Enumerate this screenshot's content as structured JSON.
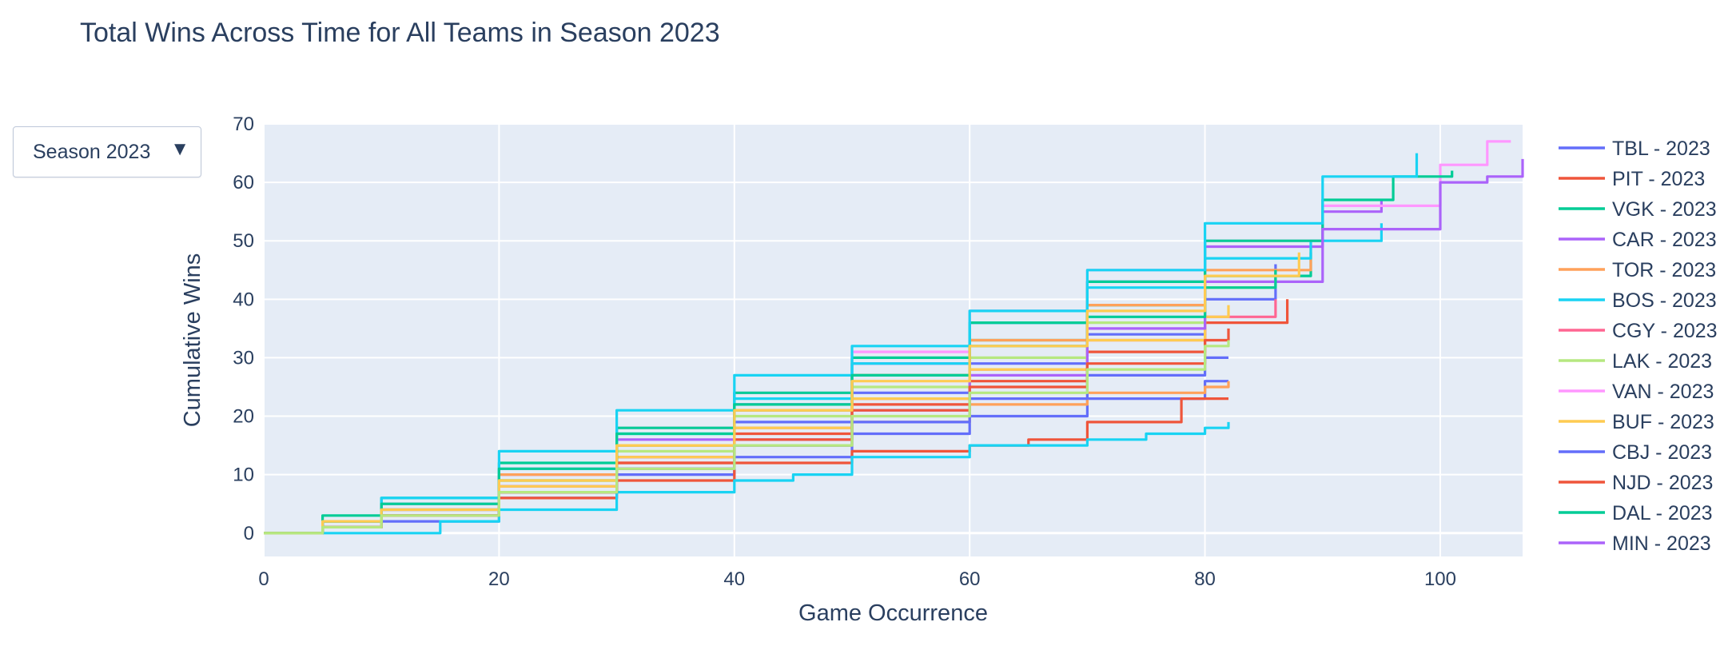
{
  "title": "Total Wins Across Time for All Teams in Season 2023",
  "dropdown": {
    "selected": "Season 2023",
    "arrow_icon": "triangle-down-icon"
  },
  "chart_data": {
    "type": "line",
    "title": "Total Wins Across Time for All Teams in Season 2023",
    "xlabel": "Game Occurrence",
    "ylabel": "Cumulative Wins",
    "xlim": [
      0,
      107
    ],
    "ylim": [
      -4,
      70
    ],
    "xticks": [
      0,
      20,
      40,
      60,
      80,
      100
    ],
    "yticks": [
      0,
      10,
      20,
      30,
      40,
      50,
      60,
      70
    ],
    "grid": true,
    "background": "#e5ecf6",
    "legend_position": "right",
    "series": [
      {
        "name": "TBL - 2023",
        "color": "#636efa",
        "points": [
          [
            0,
            0
          ],
          [
            5,
            2
          ],
          [
            10,
            4
          ],
          [
            20,
            8
          ],
          [
            30,
            13
          ],
          [
            40,
            19
          ],
          [
            50,
            24
          ],
          [
            60,
            29
          ],
          [
            70,
            34
          ],
          [
            80,
            40
          ],
          [
            86,
            46
          ]
        ]
      },
      {
        "name": "PIT - 2023",
        "color": "#ef553b",
        "points": [
          [
            0,
            0
          ],
          [
            5,
            1
          ],
          [
            10,
            3
          ],
          [
            20,
            7
          ],
          [
            30,
            12
          ],
          [
            40,
            17
          ],
          [
            50,
            22
          ],
          [
            60,
            26
          ],
          [
            70,
            31
          ],
          [
            80,
            36
          ],
          [
            87,
            40
          ]
        ]
      },
      {
        "name": "VGK - 2023",
        "color": "#00cc96",
        "points": [
          [
            0,
            0
          ],
          [
            5,
            2
          ],
          [
            10,
            5
          ],
          [
            20,
            9
          ],
          [
            30,
            15
          ],
          [
            40,
            21
          ],
          [
            50,
            27
          ],
          [
            60,
            33
          ],
          [
            70,
            39
          ],
          [
            80,
            44
          ],
          [
            89,
            48
          ]
        ]
      },
      {
        "name": "CAR - 2023",
        "color": "#ab63fa",
        "points": [
          [
            0,
            0
          ],
          [
            5,
            1
          ],
          [
            10,
            4
          ],
          [
            20,
            10
          ],
          [
            30,
            16
          ],
          [
            40,
            22
          ],
          [
            50,
            29
          ],
          [
            60,
            36
          ],
          [
            70,
            43
          ],
          [
            80,
            49
          ],
          [
            90,
            55
          ],
          [
            95,
            57
          ]
        ]
      },
      {
        "name": "TOR - 2023",
        "color": "#ffa15a",
        "points": [
          [
            0,
            0
          ],
          [
            5,
            2
          ],
          [
            10,
            5
          ],
          [
            20,
            10
          ],
          [
            30,
            15
          ],
          [
            40,
            21
          ],
          [
            50,
            27
          ],
          [
            60,
            33
          ],
          [
            70,
            39
          ],
          [
            80,
            45
          ],
          [
            89,
            49
          ]
        ]
      },
      {
        "name": "BOS - 2023",
        "color": "#19d3f3",
        "points": [
          [
            0,
            0
          ],
          [
            5,
            2
          ],
          [
            10,
            5
          ],
          [
            20,
            11
          ],
          [
            30,
            17
          ],
          [
            40,
            23
          ],
          [
            50,
            29
          ],
          [
            60,
            36
          ],
          [
            70,
            42
          ],
          [
            80,
            47
          ],
          [
            89,
            50
          ],
          [
            95,
            53
          ]
        ]
      },
      {
        "name": "CGY - 2023",
        "color": "#ff6692",
        "points": [
          [
            0,
            0
          ],
          [
            5,
            1
          ],
          [
            10,
            3
          ],
          [
            20,
            8
          ],
          [
            30,
            13
          ],
          [
            40,
            18
          ],
          [
            50,
            23
          ],
          [
            60,
            28
          ],
          [
            70,
            33
          ],
          [
            80,
            37
          ],
          [
            86,
            40
          ]
        ]
      },
      {
        "name": "LAK - 2023",
        "color": "#b6e880",
        "points": [
          [
            0,
            0
          ],
          [
            5,
            2
          ],
          [
            10,
            4
          ],
          [
            20,
            9
          ],
          [
            30,
            14
          ],
          [
            40,
            20
          ],
          [
            50,
            25
          ],
          [
            60,
            30
          ],
          [
            70,
            36
          ],
          [
            80,
            42
          ],
          [
            86,
            45
          ]
        ]
      },
      {
        "name": "VAN - 2023",
        "color": "#ff97ff",
        "points": [
          [
            0,
            0
          ],
          [
            5,
            2
          ],
          [
            10,
            5
          ],
          [
            20,
            11
          ],
          [
            30,
            18
          ],
          [
            40,
            24
          ],
          [
            50,
            31
          ],
          [
            60,
            38
          ],
          [
            70,
            45
          ],
          [
            80,
            50
          ],
          [
            90,
            56
          ],
          [
            100,
            63
          ],
          [
            104,
            67
          ],
          [
            106,
            67
          ]
        ]
      },
      {
        "name": "BUF - 2023",
        "color": "#fecb52",
        "points": [
          [
            0,
            0
          ],
          [
            5,
            1
          ],
          [
            10,
            3
          ],
          [
            20,
            8
          ],
          [
            30,
            13
          ],
          [
            40,
            18
          ],
          [
            50,
            23
          ],
          [
            60,
            28
          ],
          [
            70,
            33
          ],
          [
            80,
            37
          ],
          [
            82,
            39
          ]
        ]
      },
      {
        "name": "CBJ - 2023",
        "color": "#636efa",
        "points": [
          [
            0,
            0
          ],
          [
            5,
            1
          ],
          [
            10,
            2
          ],
          [
            20,
            6
          ],
          [
            30,
            10
          ],
          [
            40,
            13
          ],
          [
            50,
            17
          ],
          [
            60,
            20
          ],
          [
            70,
            23
          ],
          [
            80,
            26
          ],
          [
            82,
            26
          ]
        ]
      },
      {
        "name": "NJD - 2023",
        "color": "#ef553b",
        "points": [
          [
            0,
            0
          ],
          [
            5,
            1
          ],
          [
            10,
            3
          ],
          [
            20,
            6
          ],
          [
            30,
            9
          ],
          [
            40,
            12
          ],
          [
            50,
            14
          ],
          [
            60,
            15
          ],
          [
            65,
            16
          ],
          [
            70,
            19
          ],
          [
            78,
            23
          ],
          [
            82,
            23
          ]
        ]
      },
      {
        "name": "DAL - 2023",
        "color": "#00cc96",
        "points": [
          [
            0,
            0
          ],
          [
            5,
            3
          ],
          [
            10,
            6
          ],
          [
            20,
            12
          ],
          [
            30,
            18
          ],
          [
            40,
            24
          ],
          [
            50,
            30
          ],
          [
            60,
            36
          ],
          [
            70,
            43
          ],
          [
            80,
            50
          ],
          [
            90,
            57
          ],
          [
            96,
            61
          ],
          [
            101,
            62
          ]
        ]
      },
      {
        "name": "MIN - 2023",
        "color": "#ab63fa",
        "points": [
          [
            0,
            0
          ],
          [
            5,
            1
          ],
          [
            10,
            3
          ],
          [
            20,
            7
          ],
          [
            30,
            11
          ],
          [
            40,
            16
          ],
          [
            50,
            21
          ],
          [
            60,
            27
          ],
          [
            70,
            35
          ],
          [
            80,
            43
          ],
          [
            90,
            52
          ],
          [
            100,
            60
          ],
          [
            104,
            61
          ],
          [
            107,
            64
          ]
        ]
      },
      {
        "color": "#ffa15a",
        "points": [
          [
            0,
            0
          ],
          [
            5,
            1
          ],
          [
            10,
            3
          ],
          [
            20,
            7
          ],
          [
            30,
            11
          ],
          [
            40,
            15
          ],
          [
            50,
            19
          ],
          [
            60,
            22
          ],
          [
            70,
            24
          ],
          [
            80,
            25
          ],
          [
            82,
            26
          ]
        ]
      },
      {
        "color": "#19d3f3",
        "points": [
          [
            0,
            0
          ],
          [
            5,
            0
          ],
          [
            12,
            0
          ],
          [
            15,
            2
          ],
          [
            20,
            4
          ],
          [
            30,
            7
          ],
          [
            40,
            9
          ],
          [
            45,
            10
          ],
          [
            50,
            13
          ],
          [
            60,
            15
          ],
          [
            70,
            16
          ],
          [
            75,
            17
          ],
          [
            80,
            18
          ],
          [
            82,
            19
          ]
        ]
      },
      {
        "color": "#19d3f3",
        "points": [
          [
            0,
            0
          ],
          [
            5,
            2
          ],
          [
            10,
            6
          ],
          [
            20,
            14
          ],
          [
            30,
            21
          ],
          [
            40,
            27
          ],
          [
            50,
            32
          ],
          [
            60,
            38
          ],
          [
            70,
            45
          ],
          [
            80,
            53
          ],
          [
            90,
            61
          ],
          [
            98,
            65
          ]
        ]
      },
      {
        "color": "#636efa",
        "points": [
          [
            0,
            0
          ],
          [
            5,
            1
          ],
          [
            10,
            3
          ],
          [
            20,
            7
          ],
          [
            30,
            11
          ],
          [
            40,
            15
          ],
          [
            50,
            19
          ],
          [
            60,
            23
          ],
          [
            70,
            27
          ],
          [
            80,
            30
          ],
          [
            82,
            30
          ]
        ]
      },
      {
        "color": "#ef553b",
        "points": [
          [
            0,
            0
          ],
          [
            5,
            1
          ],
          [
            10,
            3
          ],
          [
            20,
            7
          ],
          [
            30,
            12
          ],
          [
            40,
            16
          ],
          [
            50,
            21
          ],
          [
            60,
            25
          ],
          [
            70,
            29
          ],
          [
            80,
            33
          ],
          [
            82,
            35
          ]
        ]
      },
      {
        "color": "#00cc96",
        "points": [
          [
            0,
            0
          ],
          [
            5,
            2
          ],
          [
            10,
            5
          ],
          [
            20,
            11
          ],
          [
            30,
            17
          ],
          [
            40,
            22
          ],
          [
            50,
            27
          ],
          [
            60,
            32
          ],
          [
            70,
            37
          ],
          [
            80,
            42
          ],
          [
            86,
            45
          ]
        ]
      },
      {
        "color": "#fecb52",
        "points": [
          [
            0,
            0
          ],
          [
            5,
            2
          ],
          [
            10,
            4
          ],
          [
            20,
            9
          ],
          [
            30,
            15
          ],
          [
            40,
            21
          ],
          [
            50,
            26
          ],
          [
            60,
            32
          ],
          [
            70,
            38
          ],
          [
            80,
            44
          ],
          [
            88,
            48
          ]
        ]
      },
      {
        "color": "#b6e880",
        "points": [
          [
            0,
            0
          ],
          [
            5,
            1
          ],
          [
            10,
            3
          ],
          [
            20,
            7
          ],
          [
            30,
            11
          ],
          [
            40,
            15
          ],
          [
            50,
            20
          ],
          [
            60,
            24
          ],
          [
            70,
            28
          ],
          [
            80,
            32
          ],
          [
            82,
            33
          ]
        ]
      }
    ]
  }
}
